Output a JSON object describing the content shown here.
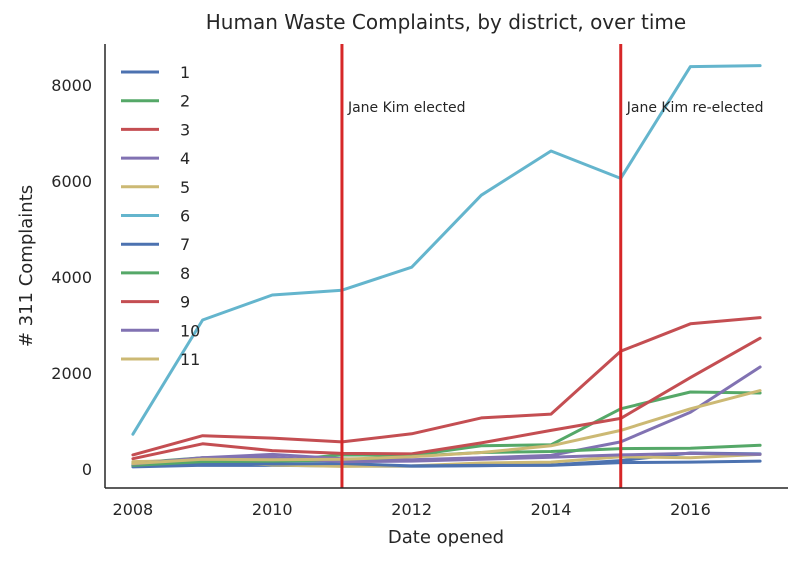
{
  "chart_data": {
    "type": "line",
    "title": "Human Waste Complaints, by district, over time",
    "xlabel": "Date opened",
    "ylabel": "# 311 Complaints",
    "xlim": [
      2007.6,
      2017.4
    ],
    "ylim": [
      -400,
      8850
    ],
    "xticks": [
      2008,
      2010,
      2012,
      2014,
      2016
    ],
    "yticks": [
      0,
      2000,
      4000,
      6000,
      8000
    ],
    "grid": false,
    "legend_position": "upper-left",
    "x": [
      2008,
      2009,
      2010,
      2011,
      2012,
      2013,
      2014,
      2015,
      2016,
      2017
    ],
    "series": [
      {
        "name": "1",
        "color": "#4c72b0",
        "values": [
          40,
          75,
          70,
          60,
          55,
          65,
          80,
          170,
          330,
          310
        ]
      },
      {
        "name": "2",
        "color": "#55a868",
        "values": [
          120,
          230,
          160,
          290,
          280,
          480,
          500,
          1250,
          1600,
          1580
        ]
      },
      {
        "name": "3",
        "color": "#c44e52",
        "values": [
          210,
          520,
          380,
          320,
          310,
          540,
          800,
          1050,
          1900,
          2720
        ]
      },
      {
        "name": "4",
        "color": "#8172b2",
        "values": [
          80,
          230,
          300,
          210,
          190,
          230,
          280,
          560,
          1180,
          2120
        ]
      },
      {
        "name": "5",
        "color": "#ccb974",
        "values": [
          150,
          180,
          80,
          50,
          60,
          120,
          140,
          250,
          230,
          300
        ]
      },
      {
        "name": "6",
        "color": "#64b5cd",
        "values": [
          720,
          3100,
          3620,
          3720,
          4200,
          5700,
          6620,
          6050,
          8380,
          8400
        ]
      },
      {
        "name": "7",
        "color": "#4c72b0",
        "values": [
          60,
          120,
          100,
          110,
          60,
          70,
          70,
          130,
          140,
          160
        ]
      },
      {
        "name": "8",
        "color": "#55a868",
        "values": [
          70,
          150,
          160,
          180,
          260,
          340,
          360,
          420,
          430,
          490
        ]
      },
      {
        "name": "9",
        "color": "#c44e52",
        "values": [
          290,
          690,
          640,
          560,
          730,
          1060,
          1140,
          2450,
          3020,
          3150
        ]
      },
      {
        "name": "10",
        "color": "#8172b2",
        "values": [
          100,
          230,
          240,
          150,
          160,
          200,
          240,
          290,
          320,
          300
        ]
      },
      {
        "name": "11",
        "color": "#ccb974",
        "values": [
          110,
          200,
          190,
          200,
          250,
          340,
          480,
          800,
          1250,
          1630
        ]
      }
    ],
    "vlines": [
      {
        "x": 2011,
        "color": "#d62728",
        "label": "Jane Kim elected"
      },
      {
        "x": 2015,
        "color": "#d62728",
        "label": "Jane Kim re-elected"
      }
    ]
  }
}
